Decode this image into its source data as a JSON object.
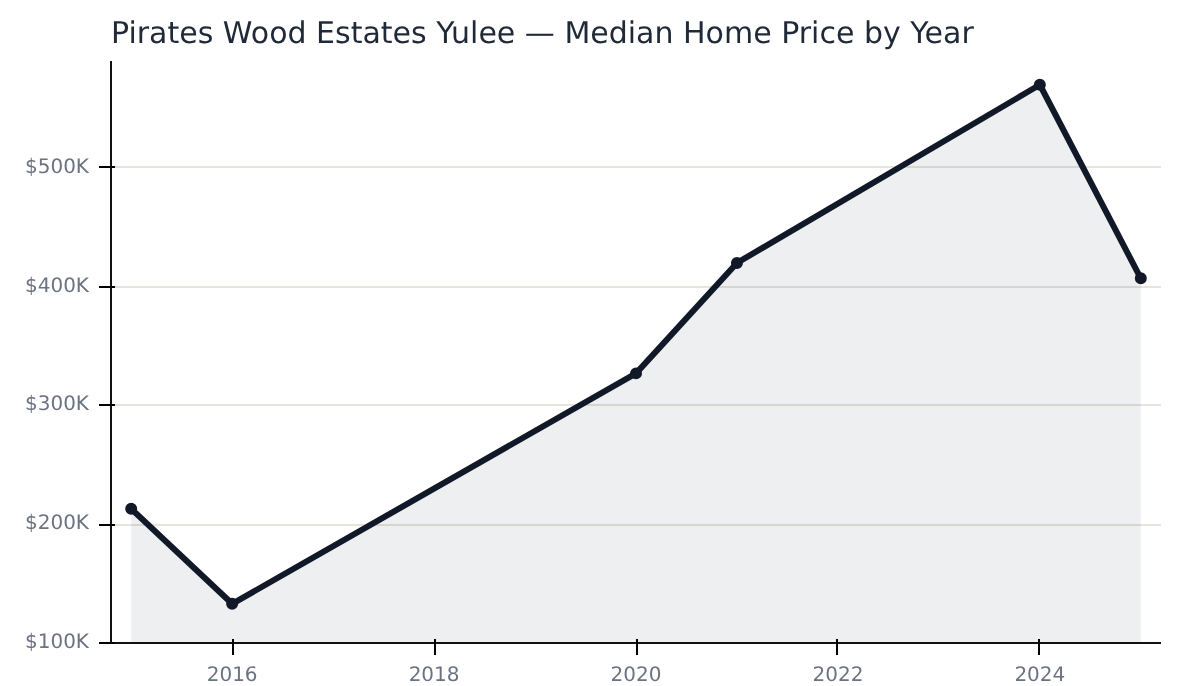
{
  "chart_data": {
    "type": "area",
    "title": "Pirates Wood Estates Yulee — Median Home Price by Year",
    "x": [
      2015,
      2016,
      2020,
      2021,
      2024,
      2025
    ],
    "series": [
      {
        "color": "#111827",
        "values": [
          213000,
          133000,
          327000,
          420000,
          570000,
          407000
        ]
      }
    ],
    "xlim": [
      2014.8,
      2025.2
    ],
    "xticks": [
      2016,
      2018,
      2020,
      2022,
      2024
    ],
    "ylim": [
      100000,
      590000
    ],
    "yticks": [
      {
        "value": 100000,
        "label": "$100K"
      },
      {
        "value": 200000,
        "label": "$200K"
      },
      {
        "value": 300000,
        "label": "$300K"
      },
      {
        "value": 400000,
        "label": "$400K"
      },
      {
        "value": 500000,
        "label": "$500K"
      }
    ],
    "grid": "y",
    "marker": "circle",
    "line_style": "solid"
  }
}
